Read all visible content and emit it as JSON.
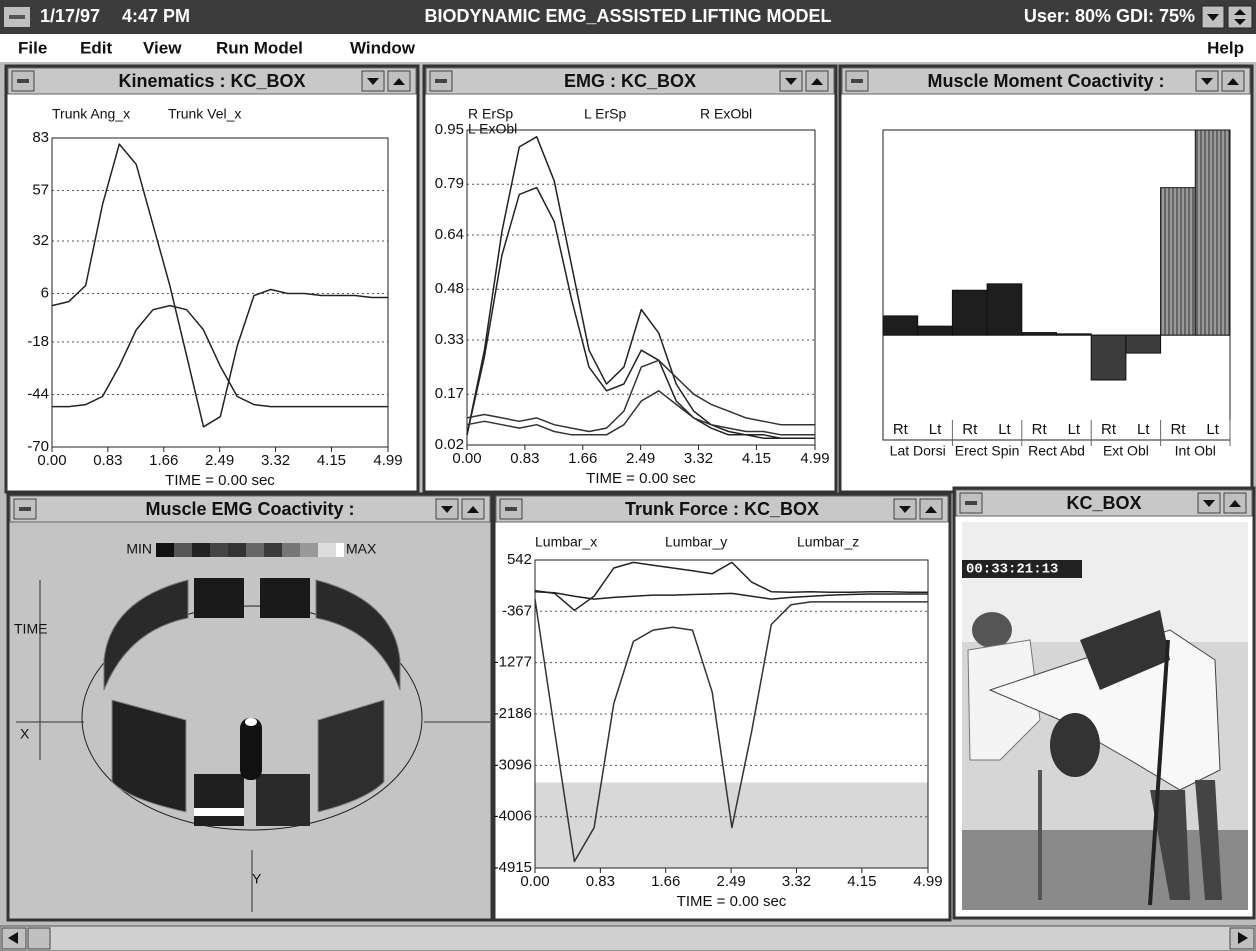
{
  "title_bar": {
    "date": "1/17/97",
    "time": "4:47 PM",
    "title": "BIODYNAMIC EMG_ASSISTED LIFTING MODEL",
    "status": "User: 80% GDI: 75%"
  },
  "menu": [
    "File",
    "Edit",
    "View",
    "Run Model",
    "Window",
    "Help"
  ],
  "windows": {
    "kinematics": {
      "title": "Kinematics : KC_BOX",
      "chart": {
        "type": "line",
        "x": [
          0,
          0.25,
          0.5,
          0.75,
          1,
          1.25,
          1.5,
          1.75,
          2,
          2.25,
          2.5,
          2.75,
          3,
          3.25,
          3.5,
          3.75,
          4,
          4.25,
          4.5,
          4.75,
          4.99
        ],
        "xlim": [
          0,
          4.99
        ],
        "xticks": [
          {
            "value": 0,
            "label": "0.00"
          },
          0.83,
          1.66,
          2.49,
          3.32,
          4.15,
          4.99
        ],
        "ylim": [
          -70,
          83
        ],
        "yticks": [
          83,
          57,
          32,
          6,
          -18,
          -44,
          -70
        ],
        "xlabel": "TIME = 0.00 sec",
        "grid": true,
        "series": [
          {
            "name": "Trunk Ang_x",
            "color": "#222222",
            "values": [
              -50,
              -50,
              -49,
              -45,
              -30,
              -12,
              -2,
              0,
              -2,
              -12,
              -30,
              -45,
              -49,
              -50,
              -50,
              -50,
              -50,
              -50,
              -50,
              -50,
              -50
            ]
          },
          {
            "name": "Trunk Vel_x",
            "color": "#222222",
            "values": [
              0,
              2,
              10,
              50,
              80,
              70,
              40,
              10,
              -25,
              -60,
              -55,
              -20,
              5,
              8,
              6,
              6,
              5,
              5,
              5,
              4,
              4
            ]
          }
        ]
      }
    },
    "emg": {
      "title": "EMG : KC_BOX",
      "chart": {
        "type": "line",
        "x": [
          0,
          0.25,
          0.5,
          0.75,
          1,
          1.25,
          1.5,
          1.75,
          2,
          2.25,
          2.5,
          2.75,
          3,
          3.25,
          3.5,
          3.75,
          4,
          4.25,
          4.5,
          4.75,
          4.99
        ],
        "xlim": [
          0,
          4.99
        ],
        "xticks": [
          {
            "value": 0,
            "label": "0.00"
          },
          0.83,
          1.66,
          2.49,
          3.32,
          4.15,
          4.99
        ],
        "ylim": [
          0.02,
          0.95
        ],
        "yticks": [
          0.95,
          0.79,
          0.64,
          0.48,
          0.33,
          0.17,
          0.02
        ],
        "xlabel": "TIME = 0.00 sec",
        "grid": true,
        "series": [
          {
            "name": "R ErSp",
            "color": "#222222",
            "values": [
              0.05,
              0.3,
              0.65,
              0.9,
              0.93,
              0.8,
              0.55,
              0.3,
              0.2,
              0.25,
              0.42,
              0.35,
              0.2,
              0.12,
              0.08,
              0.06,
              0.05,
              0.05,
              0.04,
              0.04,
              0.04
            ]
          },
          {
            "name": "L ErSp",
            "color": "#222222",
            "values": [
              0.05,
              0.28,
              0.58,
              0.76,
              0.78,
              0.68,
              0.45,
              0.25,
              0.18,
              0.2,
              0.3,
              0.27,
              0.15,
              0.1,
              0.07,
              0.05,
              0.05,
              0.04,
              0.04,
              0.04,
              0.04
            ]
          },
          {
            "name": "R ExObl",
            "color": "#333333",
            "values": [
              0.1,
              0.11,
              0.1,
              0.09,
              0.1,
              0.08,
              0.07,
              0.06,
              0.07,
              0.12,
              0.25,
              0.27,
              0.22,
              0.17,
              0.14,
              0.12,
              0.1,
              0.09,
              0.08,
              0.08,
              0.08
            ]
          },
          {
            "name": "L ExObl",
            "color": "#333333",
            "values": [
              0.08,
              0.09,
              0.08,
              0.07,
              0.08,
              0.06,
              0.05,
              0.05,
              0.05,
              0.08,
              0.15,
              0.18,
              0.14,
              0.1,
              0.08,
              0.07,
              0.06,
              0.06,
              0.05,
              0.05,
              0.05
            ]
          }
        ]
      }
    },
    "moment": {
      "title": "Muscle Moment Coactivity :",
      "chart": {
        "type": "bar",
        "groups": [
          {
            "name": "Lat Dorsi",
            "color": "#1e1e1e",
            "label_color": "#111111",
            "bars": [
              {
                "label": "Rt",
                "value": 0.15
              },
              {
                "label": "Lt",
                "value": 0.07
              }
            ]
          },
          {
            "name": "Erect Spin",
            "color": "#1e1e1e",
            "label_color": "#111111",
            "bars": [
              {
                "label": "Rt",
                "value": 0.35
              },
              {
                "label": "Lt",
                "value": 0.4
              }
            ]
          },
          {
            "name": "Rect Abd",
            "color": "#1e1e1e",
            "label_color": "#111111",
            "bars": [
              {
                "label": "Rt",
                "value": 0.02
              },
              {
                "label": "Lt",
                "value": 0.01
              }
            ]
          },
          {
            "name": "Ext Obl",
            "color": "#3c3c3c",
            "label_color": "#111111",
            "bars": [
              {
                "label": "Rt",
                "value": -0.35
              },
              {
                "label": "Lt",
                "value": -0.14
              }
            ]
          },
          {
            "name": "Int Obl",
            "color": "#7a7a7a",
            "label_color": "#bbbbbb",
            "hatched": true,
            "bars": [
              {
                "label": "Rt",
                "value": 1.15
              },
              {
                "label": "Lt",
                "value": 1.6
              }
            ]
          }
        ]
      }
    },
    "coactivity": {
      "title": "Muscle EMG Coactivity :",
      "legend_min": "MIN",
      "legend_max": "MAX",
      "axis_labels": {
        "time": "TIME",
        "x": "X",
        "y": "Y"
      }
    },
    "trunk_force": {
      "title": "Trunk Force : KC_BOX",
      "chart": {
        "type": "line",
        "x": [
          0,
          0.25,
          0.5,
          0.75,
          1,
          1.25,
          1.5,
          1.75,
          2,
          2.25,
          2.5,
          2.75,
          3,
          3.25,
          3.5,
          3.75,
          4,
          4.25,
          4.5,
          4.75,
          4.99
        ],
        "xlim": [
          0,
          4.99
        ],
        "xticks": [
          {
            "value": 0,
            "label": "0.00"
          },
          0.83,
          1.66,
          2.49,
          3.32,
          4.15,
          4.99
        ],
        "ylim": [
          -4915,
          542
        ],
        "yticks": [
          542,
          -367,
          -1277,
          -2186,
          -3096,
          -4006,
          -4915
        ],
        "xlabel": "TIME = 0.00 sec",
        "grid": true,
        "shaded_below": -3400,
        "series": [
          {
            "name": "Lumbar_x",
            "color": "#222222",
            "values": [
              0,
              -50,
              -350,
              -100,
              400,
              500,
              450,
              400,
              350,
              300,
              500,
              150,
              -20,
              -30,
              -20,
              -30,
              -30,
              -20,
              -20,
              -30,
              -30
            ]
          },
          {
            "name": "Lumbar_y",
            "color": "#222222",
            "values": [
              -20,
              -40,
              -100,
              -150,
              -120,
              -100,
              -80,
              -80,
              -70,
              -60,
              -50,
              -100,
              -150,
              -120,
              -100,
              -80,
              -70,
              -60,
              -60,
              -60,
              -60
            ]
          },
          {
            "name": "Lumbar_z",
            "color": "#333333",
            "values": [
              -150,
              -2500,
              -4800,
              -4200,
              -2000,
              -900,
              -700,
              -650,
              -700,
              -1800,
              -4200,
              -2500,
              -600,
              -250,
              -200,
              -200,
              -200,
              -200,
              -200,
              -200,
              -200
            ]
          }
        ]
      }
    },
    "video": {
      "title": "KC_BOX",
      "timecode": "00:33:21:13"
    }
  }
}
